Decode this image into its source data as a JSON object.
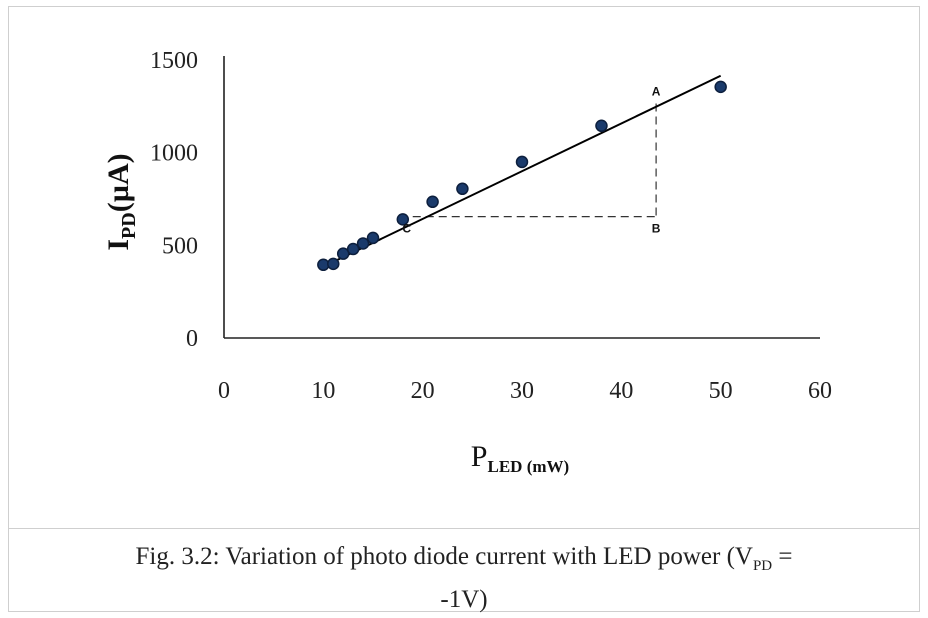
{
  "chart_data": {
    "type": "scatter",
    "x": [
      10,
      11,
      12,
      13,
      14,
      15,
      18,
      21,
      24,
      30,
      38,
      50
    ],
    "y": [
      395,
      400,
      455,
      480,
      510,
      540,
      640,
      735,
      805,
      950,
      1145,
      1355
    ],
    "trendline": {
      "x": [
        10,
        50
      ],
      "y": [
        385,
        1415
      ]
    },
    "annotations": [
      {
        "label": "A",
        "x": 43.5,
        "y": 1265
      },
      {
        "label": "B",
        "x": 43.5,
        "y": 655
      },
      {
        "label": "C",
        "x": 19,
        "y": 655
      }
    ],
    "xlim": [
      0,
      60
    ],
    "ylim": [
      0,
      1500
    ],
    "x_ticks": [
      "0",
      "10",
      "20",
      "30",
      "40",
      "50",
      "60"
    ],
    "y_ticks": [
      "0",
      "500",
      "1000",
      "1500"
    ],
    "ylabel": {
      "main": "I",
      "sub": "PD",
      "rest": "(µA)"
    },
    "xlabel": {
      "main": "P",
      "sub": "LED (mW)"
    },
    "grid": false,
    "colors": {
      "points": "#1a3a6b",
      "line": "#000000",
      "guide": "#333333"
    }
  },
  "caption": {
    "line1_before": "Fig. 3.2: Variation of photo diode current with LED power (V",
    "line1_sub": "PD",
    "line1_after": " =",
    "line2": "-1V)"
  }
}
